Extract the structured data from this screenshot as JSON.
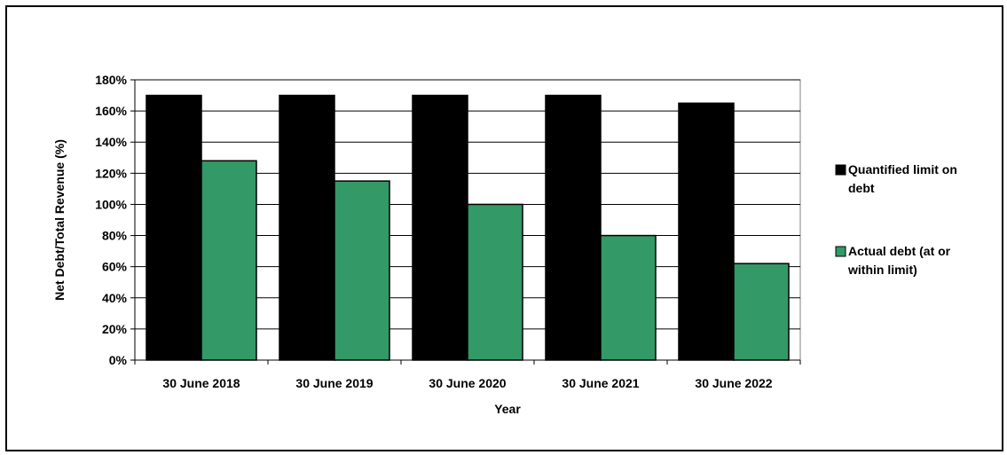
{
  "chart_data": {
    "type": "bar",
    "categories": [
      "30 June 2018",
      "30 June 2019",
      "30 June 2020",
      "30 June 2021",
      "30 June 2022"
    ],
    "series": [
      {
        "name": "Quantified limit on debt",
        "legend_lines": [
          "Quantified limit on",
          "debt"
        ],
        "color": "#000000",
        "values": [
          170,
          170,
          170,
          170,
          165
        ]
      },
      {
        "name": "Actual debt (at or within limit)",
        "legend_lines": [
          "Actual debt (at or",
          "within limit)"
        ],
        "color": "#339966",
        "values": [
          128,
          115,
          100,
          80,
          62
        ]
      }
    ],
    "title": "",
    "xlabel": "Year",
    "ylabel": "Net Debt/Total  Revenue (%)",
    "ylim": [
      0,
      180
    ],
    "yticks": [
      0,
      20,
      40,
      60,
      80,
      100,
      120,
      140,
      160,
      180
    ],
    "ytick_labels": [
      "0%",
      "20%",
      "40%",
      "60%",
      "80%",
      "100%",
      "120%",
      "140%",
      "160%",
      "180%"
    ],
    "grid": true,
    "legend_position": "right"
  }
}
